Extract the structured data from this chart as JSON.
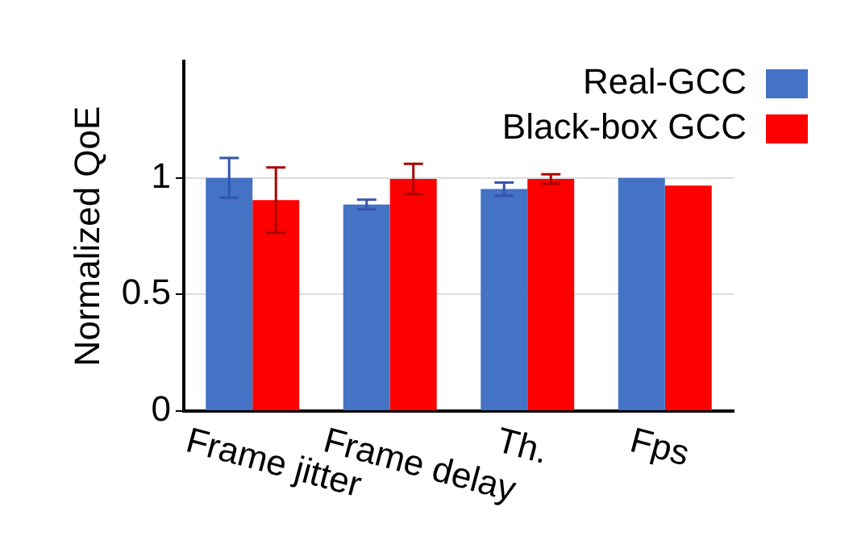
{
  "chart_data": {
    "type": "bar",
    "ylabel": "Normalized QoE",
    "categories": [
      "Frame jitter",
      "Frame delay",
      "Th.",
      "Fps"
    ],
    "series": [
      {
        "name": "Real-GCC",
        "color": "#4472c4",
        "values": [
          1.0,
          0.886,
          0.952,
          1.0
        ],
        "errors": [
          0.085,
          0.02,
          0.028,
          null
        ]
      },
      {
        "name": "Black-box GCC",
        "color": "#ff0000",
        "values": [
          0.905,
          0.995,
          0.995,
          0.967
        ],
        "errors": [
          0.14,
          0.065,
          0.02,
          null
        ]
      }
    ],
    "ylim": [
      0,
      1.5
    ],
    "yticks": [
      0,
      0.5,
      1
    ],
    "grid": "y",
    "legend": "top right"
  }
}
